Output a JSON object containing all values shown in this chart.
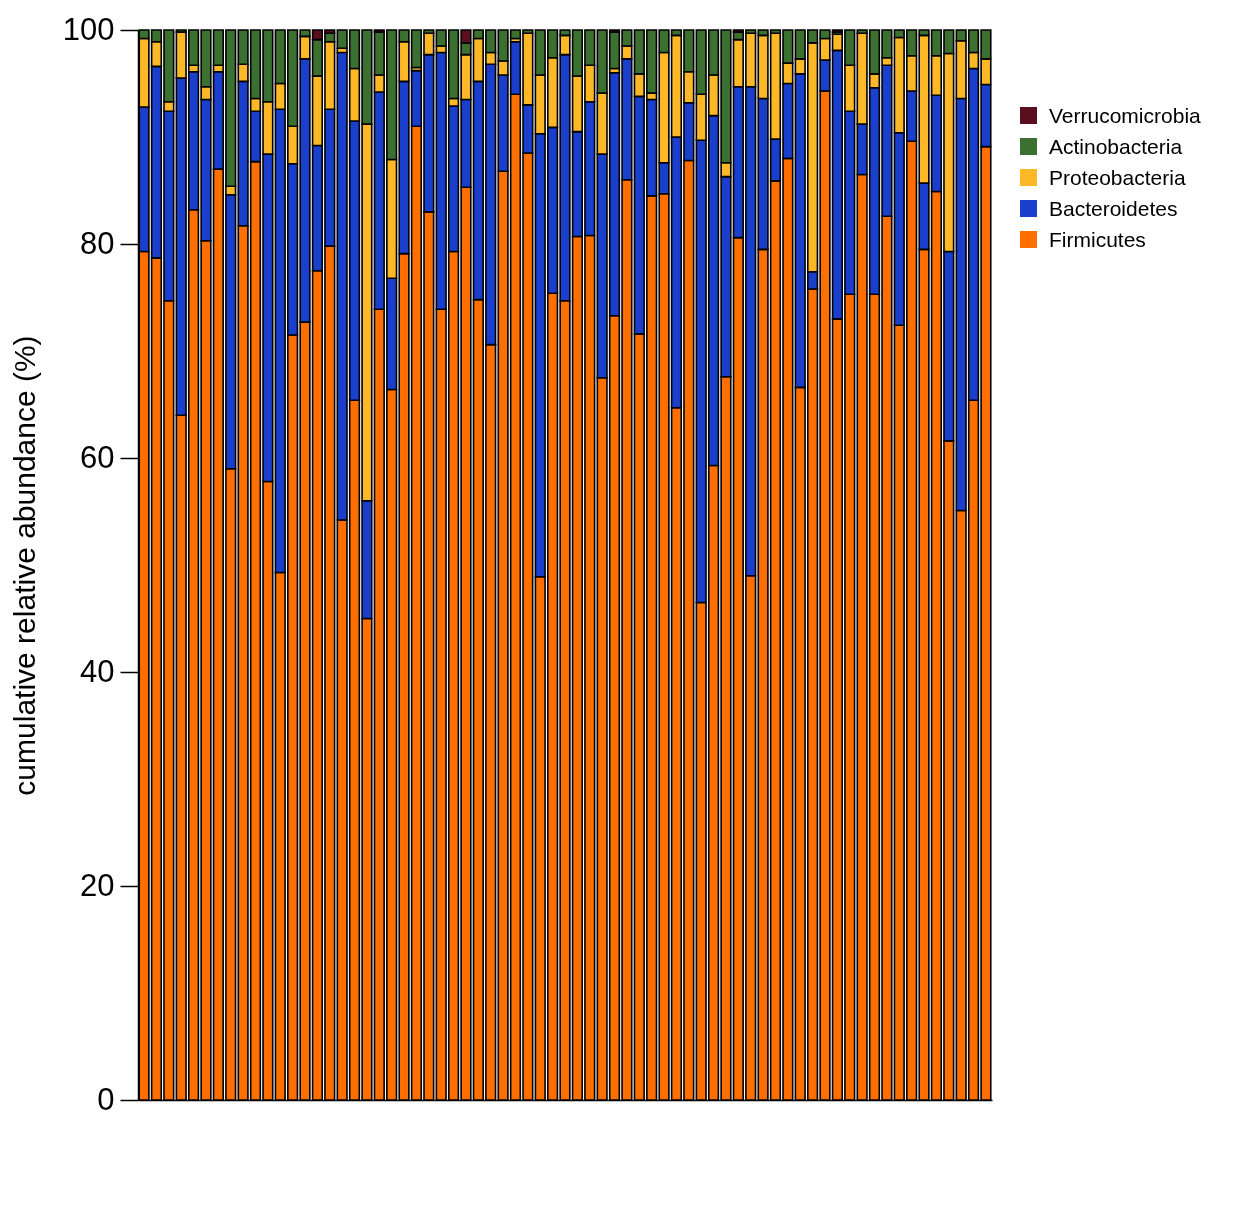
{
  "chart_data": {
    "type": "bar",
    "stacked": true,
    "ylabel": "cumulative relative abundance (%)",
    "ylim": [
      0,
      100
    ],
    "yticks": [
      0,
      20,
      40,
      60,
      80,
      100
    ],
    "legend": "top right",
    "tick_labels": "y",
    "categories": [
      null,
      null,
      null,
      null,
      null,
      null,
      null,
      null,
      null,
      null,
      null,
      null,
      null,
      null,
      null,
      null,
      null,
      null,
      null,
      null,
      null,
      null,
      null,
      null,
      null,
      null,
      null,
      null,
      null,
      null,
      null,
      null,
      null,
      null,
      null,
      null,
      null,
      null,
      null,
      null,
      null,
      null,
      null,
      null,
      null,
      null,
      null,
      null,
      null,
      null,
      null,
      null,
      null,
      null,
      null,
      null,
      null,
      null,
      null,
      null,
      null,
      null,
      null,
      null,
      null,
      null,
      null,
      null,
      null
    ],
    "series": [
      {
        "name": "Firmicutes",
        "color": "#ff6f00",
        "values": [
          79.3,
          78.7,
          74.7,
          64,
          83.2,
          80.3,
          87.0,
          59.0,
          81.7,
          87.7,
          57.8,
          49.3,
          71.5,
          72.7,
          77.5,
          79.8,
          54.2,
          65.4,
          45.0,
          73.9,
          66.4,
          79.1,
          91.0,
          83.0,
          73.9,
          79.3,
          85.3,
          74.8,
          70.6,
          86.8,
          94.0,
          88.5,
          48.9,
          75.4,
          74.7,
          80.7,
          80.8,
          67.5,
          73.3,
          86.0,
          71.6,
          84.5,
          84.7,
          64.7,
          87.8,
          46.5,
          59.3,
          67.6,
          80.6,
          49.0,
          79.5,
          85.9,
          88.0,
          66.6,
          75.8,
          94.3,
          73.0,
          75.3,
          86.5,
          75.3,
          82.6,
          72.4,
          89.6,
          79.5,
          84.9,
          61.6,
          55.1,
          65.4,
          89.1
        ]
      },
      {
        "name": "Bacteroidetes",
        "color": "#1a3fcc",
        "values": [
          13.5,
          17.9,
          17.7,
          31.5,
          12.9,
          13.2,
          9.1,
          25.6,
          13.5,
          4.7,
          30.6,
          43.3,
          16.0,
          24.6,
          11.7,
          12.8,
          43.7,
          26.1,
          11.0,
          20.3,
          10.4,
          16.1,
          5.2,
          14.7,
          24.0,
          13.6,
          8.2,
          20.4,
          26.2,
          9.0,
          4.9,
          4.5,
          41.4,
          15.5,
          23.0,
          9.8,
          12.5,
          20.9,
          22.7,
          11.3,
          22.2,
          9.0,
          2.9,
          25.3,
          5.4,
          43.2,
          32.7,
          18.7,
          14.1,
          45.7,
          14.1,
          3.9,
          7.0,
          29.3,
          1.6,
          2.9,
          25.1,
          17.1,
          4.7,
          19.3,
          14.1,
          18.0,
          4.7,
          6.2,
          9.0,
          17.7,
          38.5,
          31.0,
          5.8
        ]
      },
      {
        "name": "Proteobacteria",
        "color": "#fdb827",
        "values": [
          6.4,
          2.3,
          0.9,
          4.3,
          0.6,
          1.2,
          0.6,
          0.8,
          1.6,
          1.2,
          4.9,
          2.4,
          3.5,
          2.1,
          6.5,
          6.3,
          0.4,
          4.9,
          35.2,
          1.6,
          11.1,
          3.7,
          0.3,
          2.0,
          0.6,
          0.7,
          4.2,
          4.0,
          1.1,
          1.3,
          0.3,
          6.7,
          5.5,
          6.5,
          1.8,
          5.2,
          3.4,
          5.7,
          0.4,
          1.2,
          2.1,
          0.6,
          10.3,
          9.5,
          2.9,
          4.3,
          3.8,
          1.3,
          4.4,
          5.0,
          5.9,
          9.9,
          1.9,
          1.4,
          21.4,
          2.0,
          1.5,
          4.3,
          8.5,
          1.3,
          0.7,
          8.9,
          3.3,
          13.8,
          3.7,
          18.5,
          5.4,
          1.5,
          2.4
        ]
      },
      {
        "name": "Actinobacteria",
        "color": "#3c7030",
        "values": [
          0.8,
          1.1,
          6.7,
          0.2,
          3.3,
          5.3,
          3.3,
          14.6,
          3.2,
          6.4,
          6.7,
          5.0,
          9.0,
          0.6,
          3.4,
          0.8,
          1.7,
          3.6,
          8.8,
          4.0,
          12.1,
          1.1,
          3.5,
          0.3,
          1.5,
          6.4,
          1.1,
          0.8,
          2.1,
          2.9,
          0.8,
          0.3,
          4.2,
          2.6,
          0.5,
          4.3,
          3.3,
          5.9,
          3.4,
          1.5,
          4.1,
          5.9,
          2.1,
          0.5,
          3.9,
          6.0,
          4.2,
          12.4,
          0.7,
          0.3,
          0.5,
          0.3,
          3.1,
          2.7,
          1.2,
          0.8,
          0.2,
          3.3,
          0.3,
          4.1,
          2.6,
          0.7,
          2.4,
          0.5,
          2.4,
          2.2,
          1.0,
          2.1,
          2.7
        ]
      },
      {
        "name": "Verrucomicrobia",
        "color": "#5a0e1e",
        "values": [
          0,
          0,
          0,
          0,
          0,
          0,
          0,
          0,
          0,
          0,
          0,
          0,
          0,
          0,
          0.9,
          0.3,
          0,
          0,
          0,
          0.2,
          0,
          0,
          0,
          0,
          0,
          0,
          1.2,
          0,
          0,
          0,
          0,
          0,
          0,
          0,
          0,
          0,
          0,
          0,
          0.2,
          0,
          0,
          0,
          0,
          0,
          0,
          0,
          0,
          0,
          0.2,
          0,
          0,
          0,
          0,
          0,
          0,
          0,
          0.2,
          0,
          0,
          0,
          0,
          0,
          0,
          0,
          0,
          0,
          0,
          0,
          0
        ]
      }
    ]
  }
}
